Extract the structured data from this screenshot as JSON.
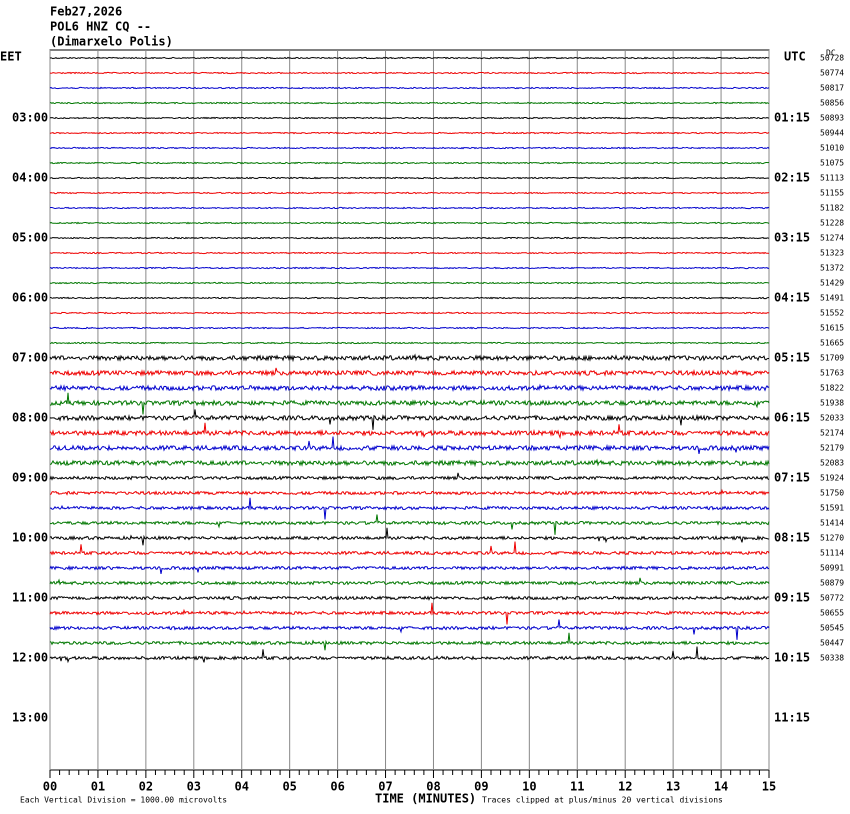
{
  "header": {
    "date": "Feb27,2026",
    "station": "POL6 HNZ CQ --",
    "location": "(Dimarxelo Polis)"
  },
  "left_zone": "EET",
  "right_zone": "UTC",
  "dc_label": "DC",
  "left_times": [
    "03:00",
    "04:00",
    "05:00",
    "06:00",
    "07:00",
    "08:00",
    "09:00",
    "10:00",
    "11:00",
    "12:00",
    "13:00"
  ],
  "right_times": [
    "01:15",
    "02:15",
    "03:15",
    "04:15",
    "05:15",
    "06:15",
    "07:15",
    "08:15",
    "09:15",
    "10:15",
    "11:15"
  ],
  "dc_offsets": [
    "50728",
    "50774",
    "50817",
    "50856",
    "50893",
    "50944",
    "51010",
    "51075",
    "51113",
    "51155",
    "51182",
    "51228",
    "51274",
    "51323",
    "51372",
    "51429",
    "51491",
    "51552",
    "51615",
    "51665",
    "51709",
    "51763",
    "51822",
    "51938",
    "52033",
    "52174",
    "52179",
    "52083",
    "51924",
    "51750",
    "51591",
    "51414",
    "51270",
    "51114",
    "50991",
    "50879",
    "50772",
    "50655",
    "50545",
    "50447",
    "50338"
  ],
  "x_ticks": [
    "00",
    "01",
    "02",
    "03",
    "04",
    "05",
    "06",
    "07",
    "08",
    "09",
    "10",
    "11",
    "12",
    "13",
    "14",
    "15"
  ],
  "footer": {
    "scale": "Each Vertical Division = 1000.00 microvolts",
    "axis_title": "TIME (MINUTES)",
    "clip_note": "Traces clipped at plus/minus 20 vertical divisions"
  }
}
